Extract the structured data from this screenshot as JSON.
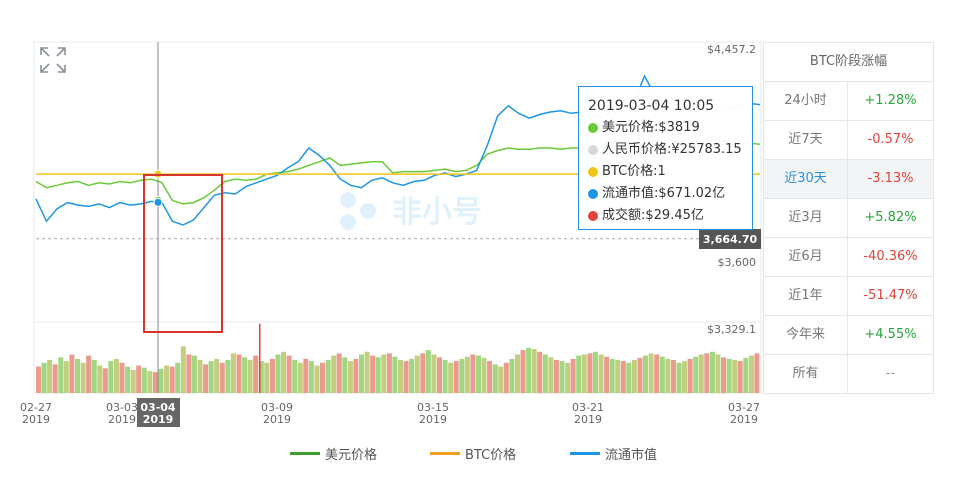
{
  "chart_data": {
    "type": "line",
    "x_axis_ticks": [
      {
        "date": "02-27",
        "year": "2019"
      },
      {
        "date": "03-03",
        "year": "2019"
      },
      {
        "date": "03-09",
        "year": "2019"
      },
      {
        "date": "03-15",
        "year": "2019"
      },
      {
        "date": "03-21",
        "year": "2019"
      },
      {
        "date": "03-27",
        "year": "2019"
      }
    ],
    "crosshair": {
      "date": "03-04",
      "year": "2019"
    },
    "y_axis_labels": [
      "$4,457.2",
      "$3,600",
      "$3,329.1"
    ],
    "current_price_label": "3,664.70",
    "current_price": 3664.7,
    "y_range": [
      3329.1,
      4457.2
    ],
    "series": [
      {
        "name": "美元价格",
        "color": "#6cc93a",
        "points": [
          [
            0,
            3895
          ],
          [
            2,
            3870
          ],
          [
            4,
            3880
          ],
          [
            6,
            3890
          ],
          [
            8,
            3895
          ],
          [
            10,
            3880
          ],
          [
            12,
            3890
          ],
          [
            14,
            3885
          ],
          [
            16,
            3895
          ],
          [
            18,
            3890
          ],
          [
            20,
            3900
          ],
          [
            22,
            3905
          ],
          [
            24,
            3890
          ],
          [
            26,
            3819
          ],
          [
            28,
            3805
          ],
          [
            30,
            3810
          ],
          [
            32,
            3830
          ],
          [
            34,
            3860
          ],
          [
            36,
            3895
          ],
          [
            38,
            3905
          ],
          [
            40,
            3900
          ],
          [
            42,
            3905
          ],
          [
            44,
            3925
          ],
          [
            46,
            3930
          ],
          [
            48,
            3935
          ],
          [
            50,
            3945
          ],
          [
            52,
            3960
          ],
          [
            54,
            3975
          ],
          [
            56,
            3990
          ],
          [
            58,
            3960
          ],
          [
            60,
            3965
          ],
          [
            62,
            3970
          ],
          [
            64,
            3975
          ],
          [
            66,
            3975
          ],
          [
            68,
            3930
          ],
          [
            70,
            3935
          ],
          [
            72,
            3935
          ],
          [
            74,
            3935
          ],
          [
            76,
            3940
          ],
          [
            78,
            3945
          ],
          [
            80,
            3935
          ],
          [
            82,
            3940
          ],
          [
            84,
            3960
          ],
          [
            86,
            4005
          ],
          [
            88,
            4020
          ],
          [
            90,
            4030
          ],
          [
            92,
            4025
          ],
          [
            94,
            4025
          ],
          [
            96,
            4030
          ],
          [
            98,
            4030
          ],
          [
            100,
            4025
          ],
          [
            102,
            4030
          ],
          [
            104,
            4030
          ],
          [
            106,
            4035
          ],
          [
            108,
            4035
          ],
          [
            110,
            4030
          ],
          [
            112,
            4040
          ],
          [
            114,
            4040
          ],
          [
            116,
            4040
          ],
          [
            118,
            4035
          ],
          [
            120,
            4040
          ],
          [
            122,
            4030
          ],
          [
            124,
            4030
          ],
          [
            126,
            4035
          ],
          [
            128,
            4035
          ],
          [
            130,
            4040
          ],
          [
            132,
            4045
          ],
          [
            134,
            4045
          ],
          [
            136,
            4050
          ],
          [
            138,
            4045
          ]
        ]
      },
      {
        "name": "流通市值",
        "color": "#1e96e6",
        "points": [
          [
            0,
            3825
          ],
          [
            2,
            3735
          ],
          [
            4,
            3785
          ],
          [
            6,
            3810
          ],
          [
            8,
            3800
          ],
          [
            10,
            3795
          ],
          [
            12,
            3805
          ],
          [
            14,
            3790
          ],
          [
            16,
            3810
          ],
          [
            18,
            3800
          ],
          [
            20,
            3805
          ],
          [
            22,
            3815
          ],
          [
            24,
            3811
          ],
          [
            26,
            3735
          ],
          [
            28,
            3720
          ],
          [
            30,
            3740
          ],
          [
            32,
            3790
          ],
          [
            34,
            3840
          ],
          [
            36,
            3850
          ],
          [
            38,
            3845
          ],
          [
            40,
            3875
          ],
          [
            42,
            3890
          ],
          [
            44,
            3905
          ],
          [
            46,
            3920
          ],
          [
            48,
            3950
          ],
          [
            50,
            3975
          ],
          [
            52,
            4030
          ],
          [
            54,
            4000
          ],
          [
            56,
            3960
          ],
          [
            58,
            3905
          ],
          [
            60,
            3880
          ],
          [
            62,
            3870
          ],
          [
            64,
            3900
          ],
          [
            66,
            3910
          ],
          [
            68,
            3890
          ],
          [
            70,
            3880
          ],
          [
            72,
            3895
          ],
          [
            74,
            3900
          ],
          [
            76,
            3920
          ],
          [
            78,
            3930
          ],
          [
            80,
            3915
          ],
          [
            82,
            3925
          ],
          [
            84,
            3940
          ],
          [
            86,
            4040
          ],
          [
            88,
            4160
          ],
          [
            90,
            4200
          ],
          [
            92,
            4170
          ],
          [
            94,
            4150
          ],
          [
            96,
            4165
          ],
          [
            98,
            4175
          ],
          [
            100,
            4180
          ],
          [
            102,
            4170
          ],
          [
            104,
            4175
          ],
          [
            106,
            4160
          ],
          [
            108,
            4155
          ],
          [
            110,
            4180
          ],
          [
            112,
            4200
          ],
          [
            114,
            4220
          ],
          [
            116,
            4320
          ],
          [
            118,
            4240
          ],
          [
            120,
            4200
          ],
          [
            122,
            4185
          ],
          [
            124,
            4180
          ],
          [
            126,
            4185
          ],
          [
            128,
            4180
          ],
          [
            130,
            4185
          ],
          [
            132,
            4190
          ],
          [
            134,
            4200
          ],
          [
            136,
            4210
          ],
          [
            138,
            4205
          ]
        ]
      },
      {
        "name": "BTC价格",
        "color": "#f0c419",
        "level": 3925
      }
    ],
    "volume_bars": [
      48,
      55,
      60,
      52,
      65,
      58,
      70,
      62,
      55,
      68,
      60,
      50,
      45,
      58,
      62,
      55,
      48,
      42,
      50,
      46,
      40,
      38,
      44,
      50,
      48,
      55,
      85,
      70,
      68,
      60,
      52,
      58,
      62,
      55,
      60,
      72,
      70,
      65,
      60,
      68,
      58,
      55,
      62,
      70,
      75,
      68,
      60,
      55,
      62,
      58,
      50,
      55,
      60,
      68,
      72,
      65,
      58,
      62,
      70,
      75,
      68,
      65,
      70,
      72,
      66,
      60,
      58,
      62,
      68,
      72,
      78,
      70,
      65,
      60,
      55,
      58,
      62,
      66,
      70,
      68,
      64,
      58,
      52,
      48,
      55,
      62,
      70,
      78,
      82,
      80,
      75,
      70,
      65,
      60,
      58,
      55,
      62,
      68,
      70,
      72,
      75,
      70,
      66,
      62,
      60,
      58,
      55,
      60,
      64,
      68,
      72,
      70,
      66,
      62,
      60,
      55,
      58,
      62,
      66,
      70,
      72,
      75,
      70,
      65,
      62,
      60,
      58,
      64,
      68,
      72
    ],
    "volume_spike": {
      "index": 83,
      "value": 210
    },
    "legend": [
      "美元价格",
      "BTC价格",
      "流通市值"
    ]
  },
  "tooltip": {
    "date": "2019-03-04 10:05",
    "rows": [
      {
        "label": "美元价格:$3819",
        "color": "#6cc93a"
      },
      {
        "label": "人民币价格:¥25783.15",
        "color": "#d8d8d8"
      },
      {
        "label": "BTC价格:1",
        "color": "#f0c419"
      },
      {
        "label": "流通市值:$671.02亿",
        "color": "#1e96e6"
      },
      {
        "label": "成交额:$29.45亿",
        "color": "#e0433b"
      }
    ]
  },
  "panel": {
    "title": "BTC阶段涨幅",
    "rows": [
      {
        "period": "24小时",
        "change": "+1.28%",
        "trend": "up"
      },
      {
        "period": "近7天",
        "change": "-0.57%",
        "trend": "down"
      },
      {
        "period": "近30天",
        "change": "-3.13%",
        "trend": "down",
        "active": true
      },
      {
        "period": "近3月",
        "change": "+5.82%",
        "trend": "up"
      },
      {
        "period": "近6月",
        "change": "-40.36%",
        "trend": "down"
      },
      {
        "period": "近1年",
        "change": "-51.47%",
        "trend": "down"
      },
      {
        "period": "今年来",
        "change": "+4.55%",
        "trend": "up"
      },
      {
        "period": "所有",
        "change": "--",
        "trend": "flat"
      }
    ]
  },
  "legend_colors": {
    "美元价格": "#3a9e2a",
    "BTC价格": "#f0a020",
    "流通市值": "#1e96e6"
  },
  "watermark": "非小号",
  "icons": {
    "expand": "expand-icon"
  }
}
